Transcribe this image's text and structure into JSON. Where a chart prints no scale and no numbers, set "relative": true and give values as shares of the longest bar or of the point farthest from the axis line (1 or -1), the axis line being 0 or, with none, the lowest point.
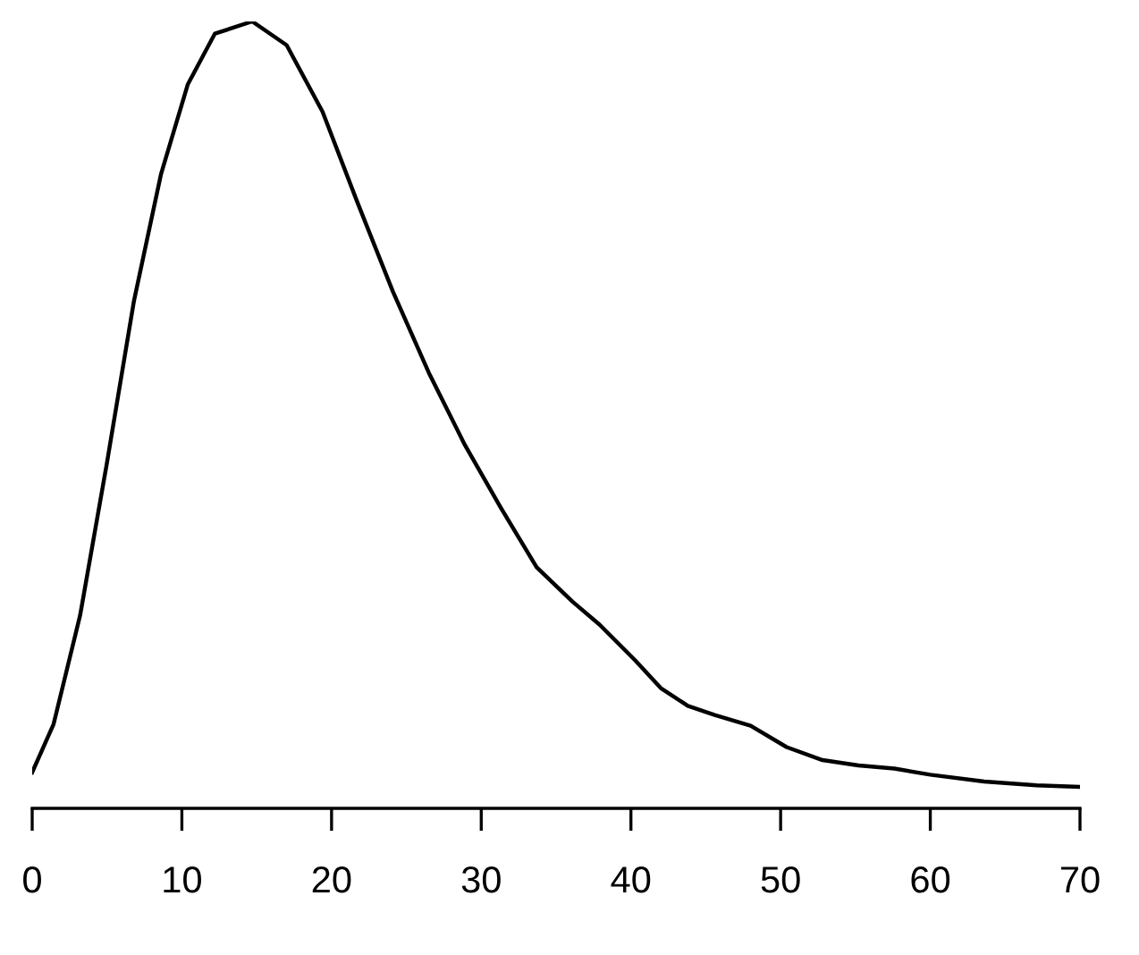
{
  "chart_data": {
    "type": "line",
    "relative": true,
    "color": "#000000",
    "marker": "none",
    "line_style": "solid",
    "grid": false,
    "x": [
      0,
      1.43,
      3.2,
      5.0,
      6.8,
      8.6,
      10.4,
      12.2,
      14.7,
      17.0,
      19.4,
      21.7,
      24.1,
      26.5,
      28.9,
      31.3,
      33.7,
      36.1,
      37.9,
      40.3,
      42.0,
      43.8,
      45.6,
      48.0,
      50.4,
      52.8,
      55.2,
      57.6,
      60.0,
      63.6,
      67.1,
      70
    ],
    "values": [
      0.019,
      0.082,
      0.224,
      0.424,
      0.635,
      0.8,
      0.918,
      0.984,
      1,
      0.969,
      0.882,
      0.765,
      0.647,
      0.541,
      0.447,
      0.365,
      0.287,
      0.242,
      0.212,
      0.165,
      0.129,
      0.106,
      0.094,
      0.08,
      0.052,
      0.035,
      0.028,
      0.024,
      0.016,
      0.007,
      0.002,
      0
    ],
    "xlim": [
      0,
      70
    ],
    "xticks": [
      0,
      10,
      20,
      30,
      40,
      50,
      60,
      70
    ]
  }
}
